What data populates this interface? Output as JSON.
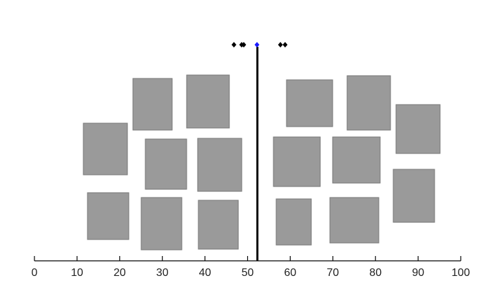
{
  "chart_data": {
    "type": "dot",
    "x": [
      46.8,
      48.6,
      49.1,
      52.2,
      57.7,
      58.8
    ],
    "colors": [
      "#000000",
      "#000000",
      "#000000",
      "#1a1aff",
      "#000000",
      "#000000"
    ],
    "divider": 52.3,
    "xlim": [
      0,
      100
    ],
    "xticks": [
      0,
      10,
      20,
      30,
      40,
      50,
      60,
      70,
      80,
      90,
      100
    ]
  }
}
